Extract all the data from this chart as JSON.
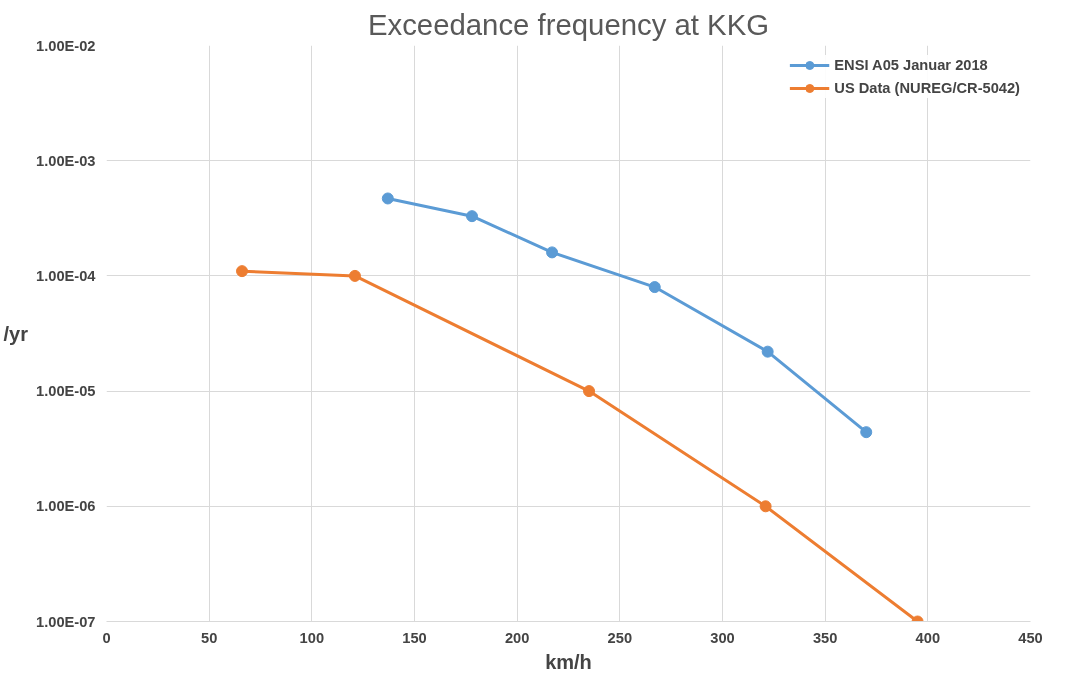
{
  "chart_data": {
    "type": "line",
    "title": "Exceedance frequency at KKG",
    "xlabel": "km/h",
    "ylabel": "/yr",
    "log": "y",
    "grid": true,
    "legend": "top right",
    "marker": "circle",
    "line_style": "solid",
    "xlim": [
      0,
      450
    ],
    "xticks": [
      0,
      50,
      100,
      150,
      200,
      250,
      300,
      350,
      400,
      450
    ],
    "ylim": [
      1e-07,
      0.01
    ],
    "yticks": [
      {
        "value": 1e-07,
        "label": "1.00E-07"
      },
      {
        "value": 1e-06,
        "label": "1.00E-06"
      },
      {
        "value": 1e-05,
        "label": "1.00E-05"
      },
      {
        "value": 0.0001,
        "label": "1.00E-04"
      },
      {
        "value": 0.001,
        "label": "1.00E-03"
      },
      {
        "value": 0.01,
        "label": "1.00E-02"
      }
    ],
    "series": [
      {
        "name": "ENSI A05 Januar 2018",
        "color": "#5b9bd5",
        "x": [
          137,
          178,
          217,
          267,
          322,
          370
        ],
        "values": [
          0.00047,
          0.00033,
          0.00016,
          8e-05,
          2.2e-05,
          4.4e-06
        ]
      },
      {
        "name": "US Data (NUREG/CR-5042)",
        "color": "#ed7d31",
        "x": [
          66,
          121,
          235,
          321,
          395
        ],
        "values": [
          0.00011,
          0.0001,
          1e-05,
          1e-06,
          1e-07
        ]
      }
    ]
  }
}
